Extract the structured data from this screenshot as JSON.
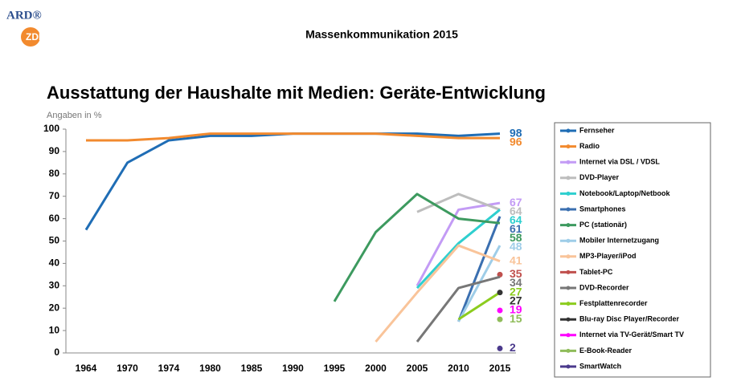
{
  "header": {
    "logo_top": "ARD®",
    "logo_bottom": "ZDF",
    "title": "Massenkommunikation 2015"
  },
  "chart_data": {
    "type": "line",
    "title": "Ausstattung der Haushalte mit Medien: Geräte-Entwicklung",
    "ylabel": "Angaben in %",
    "categories": [
      "1964",
      "1970",
      "1974",
      "1980",
      "1985",
      "1990",
      "1995",
      "2000",
      "2005",
      "2010",
      "2015"
    ],
    "ylim": [
      0,
      100
    ],
    "yticks": [
      0,
      10,
      20,
      30,
      40,
      50,
      60,
      70,
      80,
      90,
      100
    ],
    "grid": false,
    "legend": "right",
    "series": [
      {
        "name": "Fernseher",
        "color": "#1f6db5",
        "values": [
          55,
          85,
          95,
          97,
          97,
          98,
          98,
          98,
          98,
          97,
          98
        ]
      },
      {
        "name": "Radio",
        "color": "#f28a2e",
        "values": [
          95,
          95,
          96,
          98,
          98,
          98,
          98,
          98,
          97,
          96,
          96
        ]
      },
      {
        "name": "Internet via DSL / VDSL",
        "color": "#c39bf5",
        "values": [
          null,
          null,
          null,
          null,
          null,
          null,
          null,
          null,
          30,
          64,
          67
        ]
      },
      {
        "name": "DVD-Player",
        "color": "#bdbdbd",
        "values": [
          null,
          null,
          null,
          null,
          null,
          null,
          null,
          null,
          63,
          71,
          64
        ]
      },
      {
        "name": "Notebook/Laptop/Netbook",
        "color": "#2ecfcf",
        "values": [
          null,
          null,
          null,
          null,
          null,
          null,
          null,
          null,
          29,
          49,
          64
        ]
      },
      {
        "name": "Smartphones",
        "color": "#3a6fb0",
        "values": [
          null,
          null,
          null,
          null,
          null,
          null,
          null,
          null,
          null,
          14,
          61
        ]
      },
      {
        "name": "PC (stationär)",
        "color": "#3d9a5f",
        "values": [
          null,
          null,
          null,
          null,
          null,
          null,
          23,
          54,
          71,
          60,
          58
        ]
      },
      {
        "name": "Mobiler Internetzugang",
        "color": "#9ecde8",
        "values": [
          null,
          null,
          null,
          null,
          null,
          null,
          null,
          null,
          null,
          14,
          48
        ]
      },
      {
        "name": "MP3-Player/iPod",
        "color": "#f9c49a",
        "values": [
          null,
          null,
          null,
          null,
          null,
          null,
          null,
          5,
          27,
          48,
          41
        ]
      },
      {
        "name": "Tablet-PC",
        "color": "#c0504d",
        "values": [
          null,
          null,
          null,
          null,
          null,
          null,
          null,
          null,
          null,
          null,
          35
        ]
      },
      {
        "name": "DVD-Recorder",
        "color": "#777777",
        "values": [
          null,
          null,
          null,
          null,
          null,
          null,
          null,
          null,
          5,
          29,
          34
        ]
      },
      {
        "name": "Festplattenrecorder",
        "color": "#8ccc1e",
        "values": [
          null,
          null,
          null,
          null,
          null,
          null,
          null,
          null,
          null,
          15,
          27
        ]
      },
      {
        "name": "Blu-ray Disc Player/Recorder",
        "color": "#333333",
        "values": [
          null,
          null,
          null,
          null,
          null,
          null,
          null,
          null,
          null,
          null,
          27
        ]
      },
      {
        "name": "Internet via TV-Gerät/Smart TV",
        "color": "#ff00ff",
        "values": [
          null,
          null,
          null,
          null,
          null,
          null,
          null,
          null,
          null,
          null,
          19
        ]
      },
      {
        "name": "E-Book-Reader",
        "color": "#8fbc5a",
        "values": [
          null,
          null,
          null,
          null,
          null,
          null,
          null,
          null,
          null,
          null,
          15
        ]
      },
      {
        "name": "SmartWatch",
        "color": "#4b3a8c",
        "values": [
          null,
          null,
          null,
          null,
          null,
          null,
          null,
          null,
          null,
          null,
          2
        ]
      }
    ]
  }
}
